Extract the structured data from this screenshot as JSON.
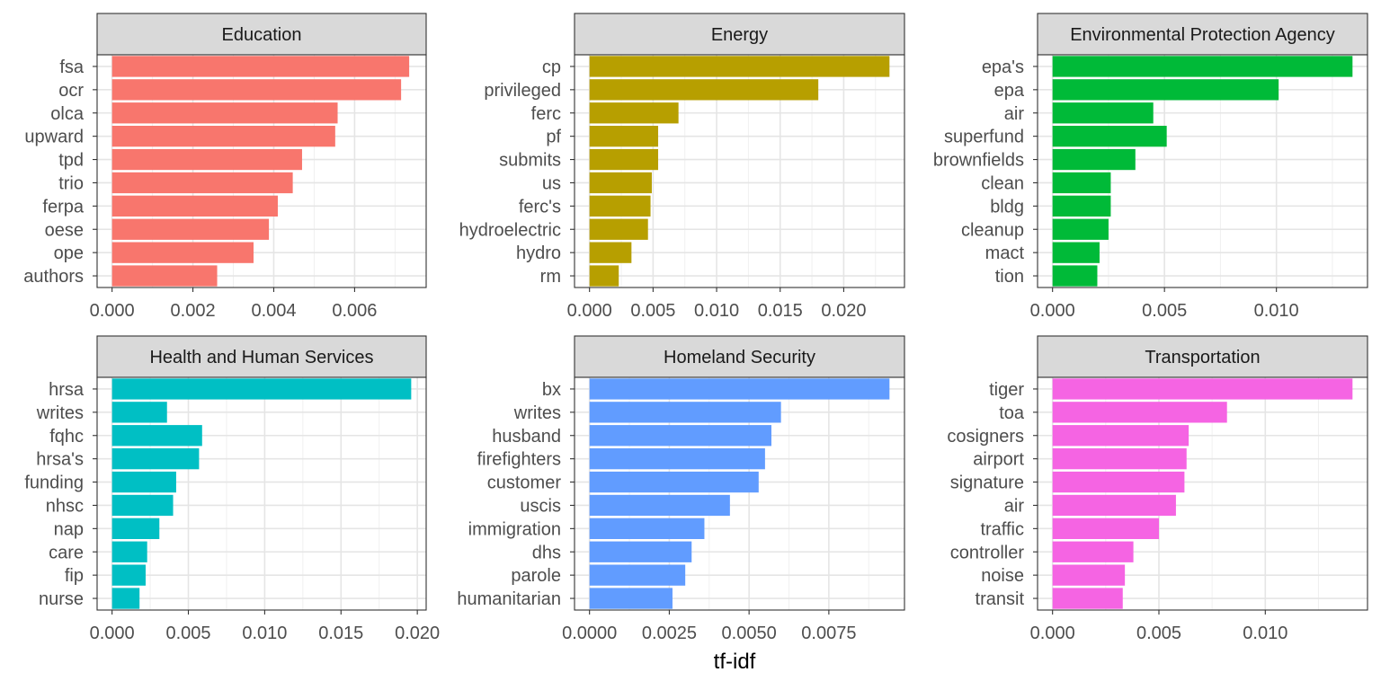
{
  "chart_data": {
    "type": "bar",
    "orientation": "horizontal",
    "facet_layout": "3 columns x 2 rows",
    "xlabel": "tf-idf",
    "ylabel": "",
    "grid": true,
    "legend": "none",
    "panels": [
      {
        "title": "Education",
        "color": "#F8766D",
        "xlim": [
          0,
          0.0074
        ],
        "ticks": [
          0,
          0.002,
          0.004,
          0.006
        ],
        "tick_labels": [
          "0.000",
          "0.002",
          "0.004",
          "0.006"
        ],
        "categories": [
          "fsa",
          "ocr",
          "olca",
          "upward",
          "tpd",
          "trio",
          "ferpa",
          "oese",
          "ope",
          "authors"
        ],
        "values": [
          0.00735,
          0.00715,
          0.00558,
          0.00552,
          0.0047,
          0.00447,
          0.0041,
          0.00388,
          0.0035,
          0.0026
        ]
      },
      {
        "title": "Energy",
        "color": "#B79F00",
        "xlim": [
          0,
          0.0236
        ],
        "ticks": [
          0,
          0.005,
          0.01,
          0.015,
          0.02
        ],
        "tick_labels": [
          "0.000",
          "0.005",
          "0.010",
          "0.015",
          "0.020"
        ],
        "categories": [
          "cp",
          "privileged",
          "ferc",
          "pf",
          "submits",
          "us",
          "ferc's",
          "hydroelectric",
          "hydro",
          "rm"
        ],
        "values": [
          0.0236,
          0.018,
          0.007,
          0.0054,
          0.0054,
          0.0049,
          0.0048,
          0.0046,
          0.0033,
          0.0023
        ]
      },
      {
        "title": "Environmental Protection Agency",
        "color": "#00BA38",
        "xlim": [
          0,
          0.0134
        ],
        "ticks": [
          0,
          0.005,
          0.01
        ],
        "tick_labels": [
          "0.000",
          "0.005",
          "0.010"
        ],
        "categories": [
          "epa's",
          "epa",
          "air",
          "superfund",
          "brownfields",
          "clean",
          "bldg",
          "cleanup",
          "mact",
          "tion"
        ],
        "values": [
          0.0134,
          0.0101,
          0.0045,
          0.0051,
          0.0037,
          0.0026,
          0.0026,
          0.0025,
          0.0021,
          0.002
        ]
      },
      {
        "title": "Health and Human Services",
        "color": "#00BFC4",
        "xlim": [
          0,
          0.0196
        ],
        "ticks": [
          0,
          0.005,
          0.01,
          0.015,
          0.02
        ],
        "tick_labels": [
          "0.000",
          "0.005",
          "0.010",
          "0.015",
          "0.020"
        ],
        "categories": [
          "hrsa",
          "writes",
          "fqhc",
          "hrsa's",
          "funding",
          "nhsc",
          "nap",
          "care",
          "fip",
          "nurse"
        ],
        "values": [
          0.0196,
          0.0036,
          0.0059,
          0.0057,
          0.0042,
          0.004,
          0.0031,
          0.0023,
          0.0022,
          0.0018
        ]
      },
      {
        "title": "Homeland Security",
        "color": "#619CFF",
        "xlim": [
          0,
          0.0094
        ],
        "ticks": [
          0,
          0.0025,
          0.005,
          0.0075
        ],
        "tick_labels": [
          "0.0000",
          "0.0025",
          "0.0050",
          "0.0075"
        ],
        "categories": [
          "bx",
          "writes",
          "husband",
          "firefighters",
          "customer",
          "uscis",
          "immigration",
          "dhs",
          "parole",
          "humanitarian"
        ],
        "values": [
          0.0094,
          0.006,
          0.0057,
          0.0055,
          0.0053,
          0.0044,
          0.0036,
          0.0032,
          0.003,
          0.0026
        ]
      },
      {
        "title": "Transportation",
        "color": "#F564E3",
        "xlim": [
          0,
          0.0141
        ],
        "ticks": [
          0,
          0.005,
          0.01
        ],
        "tick_labels": [
          "0.000",
          "0.005",
          "0.010"
        ],
        "categories": [
          "tiger",
          "toa",
          "cosigners",
          "airport",
          "signature",
          "air",
          "traffic",
          "controller",
          "noise",
          "transit"
        ],
        "values": [
          0.0141,
          0.0082,
          0.0064,
          0.0063,
          0.0062,
          0.0058,
          0.005,
          0.0038,
          0.0034,
          0.0033
        ]
      }
    ]
  }
}
